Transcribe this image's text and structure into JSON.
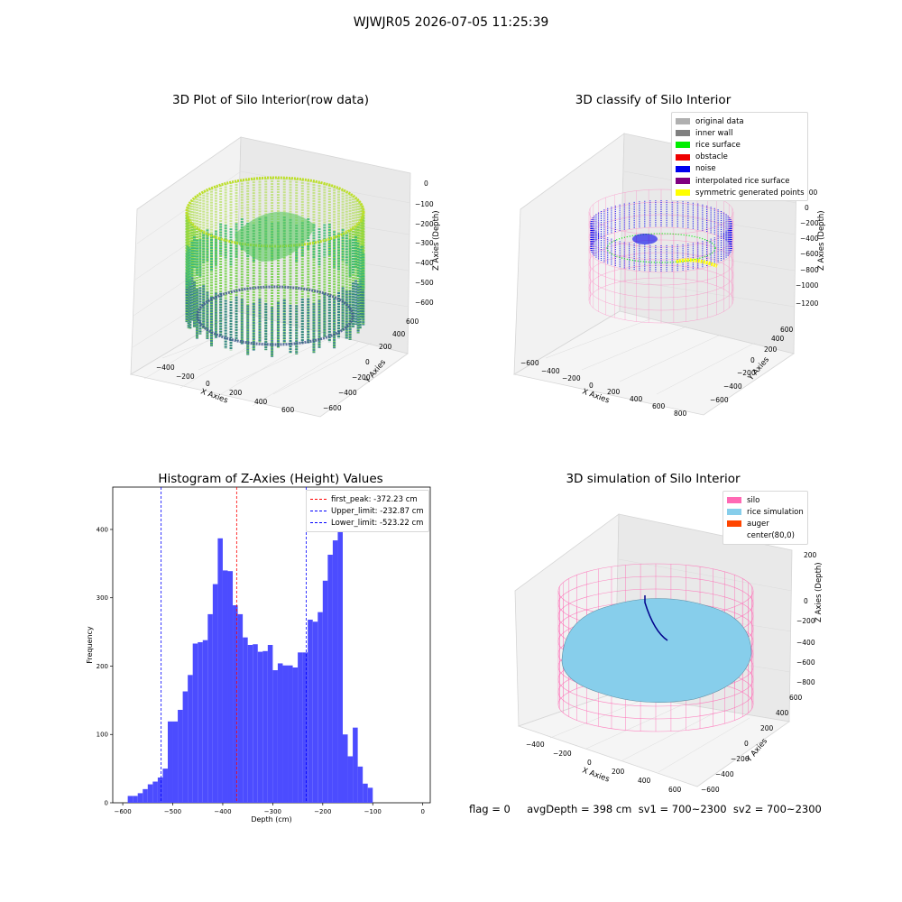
{
  "figure": {
    "title": "WJWJR05 2026-07-05 11:25:39"
  },
  "footer": {
    "text": "flag = 0     avgDepth = 398 cm  sv1 = 700~2300  sv2 = 700~2300"
  },
  "plots": {
    "raw": {
      "title": "3D Plot of Silo Interior(row data)",
      "xlabel": "X Axies",
      "ylabel": "Y Axies",
      "zlabel": "Z Axies (Depth)",
      "xticks": [
        "−400",
        "−200",
        "0",
        "200",
        "400",
        "600"
      ],
      "yticks": [
        "−600",
        "−400",
        "−200",
        "0",
        "200",
        "400",
        "600"
      ],
      "zticks": [
        "0",
        "−100",
        "−200",
        "−300",
        "−400",
        "−500",
        "−600"
      ]
    },
    "classify": {
      "title": "3D classify of Silo Interior",
      "xlabel": "X Axies",
      "ylabel": "Y Axies",
      "zlabel": "Z Axies (Depth)",
      "xticks": [
        "−600",
        "−400",
        "−200",
        "0",
        "200",
        "400",
        "600",
        "800"
      ],
      "yticks": [
        "−600",
        "−400",
        "−200",
        "0",
        "200",
        "400",
        "600"
      ],
      "zticks": [
        "200",
        "0",
        "−200",
        "−400",
        "−600",
        "−800",
        "−1000",
        "−1200"
      ],
      "legend": [
        {
          "label": "original data",
          "color": "#b0b0b0"
        },
        {
          "label": "inner wall",
          "color": "#808080"
        },
        {
          "label": "rice surface",
          "color": "#00ee00"
        },
        {
          "label": "obstacle",
          "color": "#ee0000"
        },
        {
          "label": "noise",
          "color": "#0000ee"
        },
        {
          "label": "interpolated rice surface",
          "color": "#800080"
        },
        {
          "label": "symmetric generated points",
          "color": "#ffff00"
        }
      ]
    },
    "simulation": {
      "title": "3D simulation of Silo Interior",
      "xlabel": "X Axies",
      "ylabel": "Y Axies",
      "zlabel": "Z Axies (Depth)",
      "xticks": [
        "−400",
        "−200",
        "0",
        "200",
        "400",
        "600"
      ],
      "yticks": [
        "−600",
        "−400",
        "−200",
        "0",
        "200",
        "400",
        "600"
      ],
      "zticks": [
        "200",
        "0",
        "−200",
        "−400",
        "−600",
        "−800"
      ],
      "legend": [
        {
          "label": "silo",
          "color": "#ff69b4"
        },
        {
          "label": "rice simulation",
          "color": "#87ceeb"
        },
        {
          "label": "auger",
          "color": "#ff4500"
        },
        {
          "label": "center(80,0)",
          "color": "#ffffff"
        }
      ]
    }
  },
  "chart_data": [
    {
      "type": "bar",
      "title": "Histogram of Z-Axies (Height) Values",
      "xlabel": "Depth (cm)",
      "ylabel": "Frequency",
      "xlim": [
        -620,
        15
      ],
      "ylim": [
        0,
        462
      ],
      "xticks": [
        -600,
        -500,
        -400,
        -300,
        -200,
        -100,
        0
      ],
      "yticks": [
        0,
        100,
        200,
        300,
        400
      ],
      "bin_start": -590,
      "bin_width": 10,
      "values": [
        10,
        10,
        14,
        20,
        27,
        31,
        37,
        50,
        119,
        119,
        136,
        163,
        187,
        233,
        235,
        238,
        276,
        320,
        387,
        340,
        339,
        289,
        276,
        242,
        231,
        232,
        221,
        222,
        231,
        194,
        204,
        201,
        201,
        198,
        220,
        220,
        268,
        265,
        279,
        325,
        363,
        384,
        415,
        100,
        68,
        110,
        53,
        28,
        22
      ],
      "bar_color": "#4c4cff",
      "legend_position": "top-right",
      "reference_lines": [
        {
          "name": "first_peak: -372.23 cm",
          "x": -372.23,
          "color": "#ff0000"
        },
        {
          "name": "Upper_limit: -232.87 cm",
          "x": -232.87,
          "color": "#0000ff"
        },
        {
          "name": "Lower_limit: -523.22 cm",
          "x": -523.22,
          "color": "#0000ff"
        }
      ]
    }
  ]
}
